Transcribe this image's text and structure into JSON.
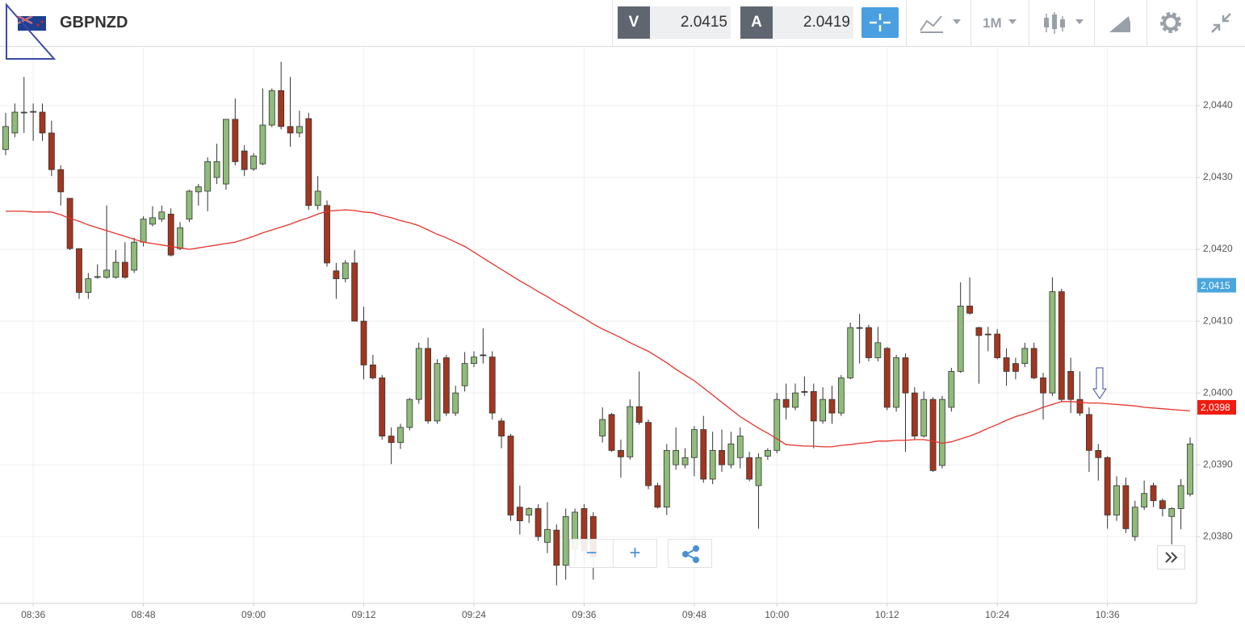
{
  "header": {
    "symbol": "GBPNZD",
    "bid_label": "V",
    "bid": "2.0415",
    "ask_label": "A",
    "ask": "2.0419",
    "period": "1M"
  },
  "chart_data": {
    "type": "candlestick",
    "categories": [
      null,
      null,
      null,
      "08:36",
      null,
      null,
      null,
      null,
      null,
      null,
      null,
      null,
      null,
      null,
      null,
      "08:48",
      null,
      null,
      null,
      null,
      null,
      null,
      null,
      null,
      null,
      null,
      null,
      "09:00",
      null,
      null,
      null,
      null,
      null,
      null,
      null,
      null,
      null,
      null,
      null,
      "09:12",
      null,
      null,
      null,
      null,
      null,
      null,
      null,
      null,
      null,
      null,
      null,
      "09:24",
      null,
      null,
      null,
      null,
      null,
      null,
      null,
      null,
      null,
      null,
      null,
      "09:36",
      null,
      null,
      null,
      null,
      null,
      null,
      null,
      null,
      null,
      null,
      null,
      "09:48",
      null,
      null,
      null,
      null,
      null,
      null,
      null,
      null,
      "10:00",
      null,
      null,
      null,
      null,
      null,
      null,
      null,
      null,
      null,
      null,
      null,
      "10:12",
      null,
      null,
      null,
      null,
      null,
      null,
      null,
      null,
      null,
      null,
      null,
      "10:24",
      null,
      null,
      null,
      null,
      null,
      null,
      null,
      null,
      null,
      null,
      null,
      "10:36",
      null,
      null,
      null,
      null,
      null,
      null,
      null,
      null,
      null
    ],
    "open": [
      2.04339,
      2.04362,
      2.0439,
      2.04391,
      2.04391,
      2.04362,
      2.04311,
      2.04271,
      2.04201,
      2.0414,
      2.04161,
      2.04161,
      2.04161,
      2.04182,
      2.04171,
      2.0421,
      2.04235,
      2.04242,
      2.04249,
      2.04201,
      2.04242,
      2.0428,
      2.04281,
      2.043,
      2.04291,
      2.04381,
      2.04337,
      2.04312,
      2.04319,
      2.04373,
      2.04421,
      2.04371,
      2.04362,
      2.04382,
      2.04261,
      2.04261,
      2.0417,
      2.04159,
      2.04181,
      2.041,
      2.04039,
      2.04021,
      2.0394,
      2.03931,
      2.03952,
      2.03991,
      2.04062,
      2.03961,
      2.04049,
      2.03972,
      2.0401,
      2.04041,
      2.04053,
      2.0405,
      2.03961,
      2.0394,
      2.03841,
      2.0383,
      2.03839,
      2.03792,
      2.03809,
      2.0376,
      2.03783,
      2.03839,
      2.03828,
      2.0394,
      2.0397,
      2.0392,
      2.03911,
      2.03981,
      2.03959,
      2.03871,
      2.03841,
      2.039,
      2.039,
      2.0391,
      2.03949,
      2.0388,
      2.0392,
      2.039,
      2.0391,
      2.0391,
      2.03871,
      2.03912,
      2.0392,
      2.03991,
      2.0398,
      2.04002,
      2.04002,
      2.03961,
      2.03991,
      2.03972,
      2.04021,
      2.04091,
      2.04091,
      2.04049,
      2.04062,
      2.0398,
      2.04049,
      2.04,
      2.0394,
      2.03991,
      2.03899,
      2.0398,
      2.0403,
      2.04121,
      2.04091,
      2.04082,
      2.04082,
      2.04049,
      2.04041,
      2.04041,
      2.04062,
      2.04021,
      2.04,
      2.04141,
      2.0403,
      2.03991,
      2.0397,
      2.0392,
      2.0391,
      2.0383,
      2.03871,
      2.038,
      2.03841,
      2.03871,
      2.0385,
      2.03828,
      2.03839,
      2.03859
    ],
    "high": [
      2.0439,
      2.04403,
      2.0444,
      2.04403,
      2.04403,
      2.04379,
      2.04317,
      2.04271,
      2.04201,
      2.04167,
      2.04179,
      2.04261,
      2.04199,
      2.0421,
      2.04216,
      2.04246,
      2.0426,
      2.04261,
      2.04257,
      2.04238,
      2.04283,
      2.04291,
      2.04328,
      2.04347,
      2.04381,
      2.0441,
      2.04345,
      2.04334,
      2.04424,
      2.04424,
      2.04461,
      2.0444,
      2.04393,
      2.0439,
      2.04302,
      2.04268,
      2.04181,
      2.04185,
      2.04199,
      2.0412,
      2.04053,
      2.04025,
      2.03952,
      2.03957,
      2.03993,
      2.0407,
      2.04077,
      2.04047,
      2.04053,
      2.0401,
      2.04057,
      2.04058,
      2.0409,
      2.04058,
      2.03965,
      2.03943,
      2.03871,
      2.03841,
      2.03845,
      2.03848,
      2.03817,
      2.03839,
      2.03839,
      2.03845,
      2.03834,
      2.0398,
      2.03972,
      2.03935,
      2.03991,
      2.0403,
      2.03963,
      2.03875,
      2.03929,
      2.03952,
      2.03923,
      2.03954,
      2.03968,
      2.03946,
      2.03949,
      2.03946,
      2.03952,
      2.03918,
      2.03916,
      2.03923,
      2.04,
      2.04013,
      2.04013,
      2.04023,
      2.04013,
      2.04008,
      2.0401,
      2.04025,
      2.04098,
      2.0411,
      2.04095,
      2.04092,
      2.04064,
      2.04053,
      2.04055,
      2.04008,
      2.04002,
      2.03994,
      2.03996,
      2.04035,
      2.04154,
      2.04161,
      2.04092,
      2.04092,
      2.04089,
      2.04062,
      2.04049,
      2.0407,
      2.0407,
      2.04028,
      2.04161,
      2.04145,
      2.04049,
      2.0403,
      2.0398,
      2.03929,
      2.03912,
      2.03884,
      2.03882,
      2.0385,
      2.03878,
      2.03875,
      2.03853,
      2.03841,
      2.0388,
      2.03938
    ],
    "low": [
      2.04331,
      2.04356,
      2.04362,
      2.04351,
      2.04351,
      2.04302,
      2.04261,
      2.04199,
      2.04131,
      2.04131,
      2.04159,
      2.04159,
      2.04159,
      2.04159,
      2.04167,
      2.04204,
      2.04232,
      2.04238,
      2.0419,
      2.04199,
      2.04238,
      2.04261,
      2.04253,
      2.04291,
      2.04283,
      2.04317,
      2.04302,
      2.04309,
      2.04317,
      2.0437,
      2.04367,
      2.04343,
      2.04356,
      2.04255,
      2.04255,
      2.04176,
      2.04131,
      2.04154,
      2.041,
      2.04019,
      2.04019,
      2.03935,
      2.03901,
      2.03922,
      2.03948,
      2.03985,
      2.03957,
      2.03957,
      2.03968,
      2.03968,
      2.04002,
      2.04036,
      2.04041,
      2.03963,
      2.03923,
      2.03822,
      2.03803,
      2.03819,
      2.03794,
      2.03777,
      2.03732,
      2.0374,
      2.0376,
      2.0376,
      2.0374,
      2.03931,
      2.03918,
      2.03882,
      2.03907,
      2.03956,
      2.03866,
      2.03839,
      2.0383,
      2.03893,
      2.03895,
      2.03884,
      2.03875,
      2.03873,
      2.0389,
      2.03895,
      2.03895,
      2.03877,
      2.03811,
      2.03907,
      2.03916,
      2.03963,
      2.03976,
      2.03996,
      2.03923,
      2.03957,
      2.03957,
      2.03968,
      2.04019,
      2.04041,
      2.04044,
      2.04044,
      2.03976,
      2.03974,
      2.03918,
      2.03935,
      2.03938,
      2.0389,
      2.03895,
      2.03974,
      2.04028,
      2.04109,
      2.04013,
      2.04058,
      2.04047,
      2.0401,
      2.04019,
      2.04036,
      2.04019,
      2.03963,
      2.03996,
      2.03988,
      2.03972,
      2.03968,
      2.0389,
      2.03878,
      2.03811,
      2.03822,
      2.03805,
      2.03794,
      2.03837,
      2.03841,
      2.03828,
      2.03789,
      2.0381,
      2.03856
    ],
    "close": [
      2.04371,
      2.04391,
      2.04391,
      2.04392,
      2.04362,
      2.04311,
      2.0428,
      2.04201,
      2.0414,
      2.04159,
      2.04162,
      2.04171,
      2.04182,
      2.04161,
      2.0421,
      2.04242,
      2.04244,
      2.04252,
      2.04192,
      2.0423,
      2.04281,
      2.04287,
      2.04322,
      2.04322,
      2.04381,
      2.04322,
      2.04311,
      2.0433,
      2.04373,
      2.04421,
      2.04371,
      2.04362,
      2.04371,
      2.04261,
      2.04281,
      2.04181,
      2.04159,
      2.04181,
      2.041,
      2.04039,
      2.04021,
      2.0394,
      2.03931,
      2.03952,
      2.03991,
      2.04062,
      2.03961,
      2.04041,
      2.03972,
      2.04,
      2.04041,
      2.0405,
      2.04052,
      2.03972,
      2.0394,
      2.0383,
      2.03822,
      2.03839,
      2.038,
      2.0381,
      2.0376,
      2.03828,
      2.03834,
      2.0378,
      2.03772,
      2.03963,
      2.0392,
      2.03911,
      2.03981,
      2.03959,
      2.03871,
      2.03841,
      2.0392,
      2.0392,
      2.0391,
      2.03949,
      2.0388,
      2.0392,
      2.039,
      2.03929,
      2.0394,
      2.0388,
      2.0391,
      2.0392,
      2.03991,
      2.0398,
      2.04,
      2.04001,
      2.03961,
      2.03991,
      2.03972,
      2.04021,
      2.04091,
      2.0409,
      2.04049,
      2.0407,
      2.0398,
      2.04049,
      2.04,
      2.0394,
      2.03991,
      2.03892,
      2.03991,
      2.0403,
      2.04121,
      2.04111,
      2.0408,
      2.04081,
      2.04049,
      2.0403,
      2.0403,
      2.04062,
      2.04021,
      2.04,
      2.04141,
      2.03991,
      2.03991,
      2.03972,
      2.0392,
      2.0391,
      2.0383,
      2.03871,
      2.03811,
      2.03841,
      2.0386,
      2.0385,
      2.03839,
      2.03839,
      2.03871,
      2.03929
    ],
    "up_color": "#8fbc79",
    "down_color": "#a3361f",
    "overlay": {
      "type": "line",
      "color": "#e5332a",
      "values": [
        2.04253,
        2.04253,
        2.04253,
        2.04252,
        2.04252,
        2.04252,
        2.04248,
        2.04243,
        2.04239,
        2.04234,
        2.0423,
        2.04226,
        2.04222,
        2.04218,
        2.04214,
        2.0421,
        2.04208,
        2.04206,
        2.04204,
        2.04202,
        2.042,
        2.04202,
        2.04204,
        2.04206,
        2.04208,
        2.0421,
        2.04214,
        2.04218,
        2.04223,
        2.04227,
        2.04231,
        2.04235,
        2.0424,
        2.04244,
        2.04249,
        2.04253,
        2.04254,
        2.04255,
        2.04254,
        2.04252,
        2.04251,
        2.04247,
        2.04244,
        2.0424,
        2.04237,
        2.04233,
        2.04227,
        2.04221,
        2.04216,
        2.0421,
        2.04204,
        2.04196,
        2.04188,
        2.0418,
        2.04172,
        2.04164,
        2.04156,
        2.04149,
        2.04141,
        2.04134,
        2.04126,
        2.04119,
        2.04111,
        2.04104,
        2.04096,
        2.04089,
        2.04083,
        2.04077,
        2.0407,
        2.04064,
        2.04058,
        2.0405,
        2.04042,
        2.04033,
        2.04025,
        2.04017,
        2.04007,
        2.03997,
        2.03987,
        2.03977,
        2.03967,
        2.03959,
        2.03951,
        2.03944,
        2.03936,
        2.03928,
        2.03927,
        2.03926,
        2.03926,
        2.03925,
        2.03925,
        2.03927,
        2.03928,
        2.0393,
        2.03931,
        2.03933,
        2.03933,
        2.03934,
        2.03934,
        2.03935,
        2.03935,
        2.03933,
        2.0393,
        2.03932,
        2.03936,
        2.0394,
        2.03945,
        2.03951,
        2.03956,
        2.03962,
        2.03967,
        2.03971,
        2.03975,
        2.0398,
        2.03984,
        2.03988,
        2.03988,
        2.03987,
        2.03986,
        2.03986,
        2.03985,
        2.03984,
        2.03983,
        2.03982,
        2.0398,
        2.03979,
        2.03978,
        2.03977,
        2.03976,
        2.03975
      ]
    },
    "ylim": [
      2.03707,
      2.04482
    ],
    "yticks": [
      {
        "value": 2.038,
        "label": "2,0380"
      },
      {
        "value": 2.039,
        "label": "2,0390"
      },
      {
        "value": 2.04,
        "label": "2,0400"
      },
      {
        "value": 2.041,
        "label": "2,0410"
      },
      {
        "value": 2.042,
        "label": "2,0420"
      },
      {
        "value": 2.043,
        "label": "2,0430"
      },
      {
        "value": 2.044,
        "label": "2,0440"
      }
    ],
    "grid": true,
    "price_markers": [
      {
        "value": 2.0415,
        "label": "2,0415",
        "color": "#4aa6dc"
      },
      {
        "value": 2.0398,
        "label": "2,0398",
        "color": "#f01c10"
      }
    ]
  }
}
